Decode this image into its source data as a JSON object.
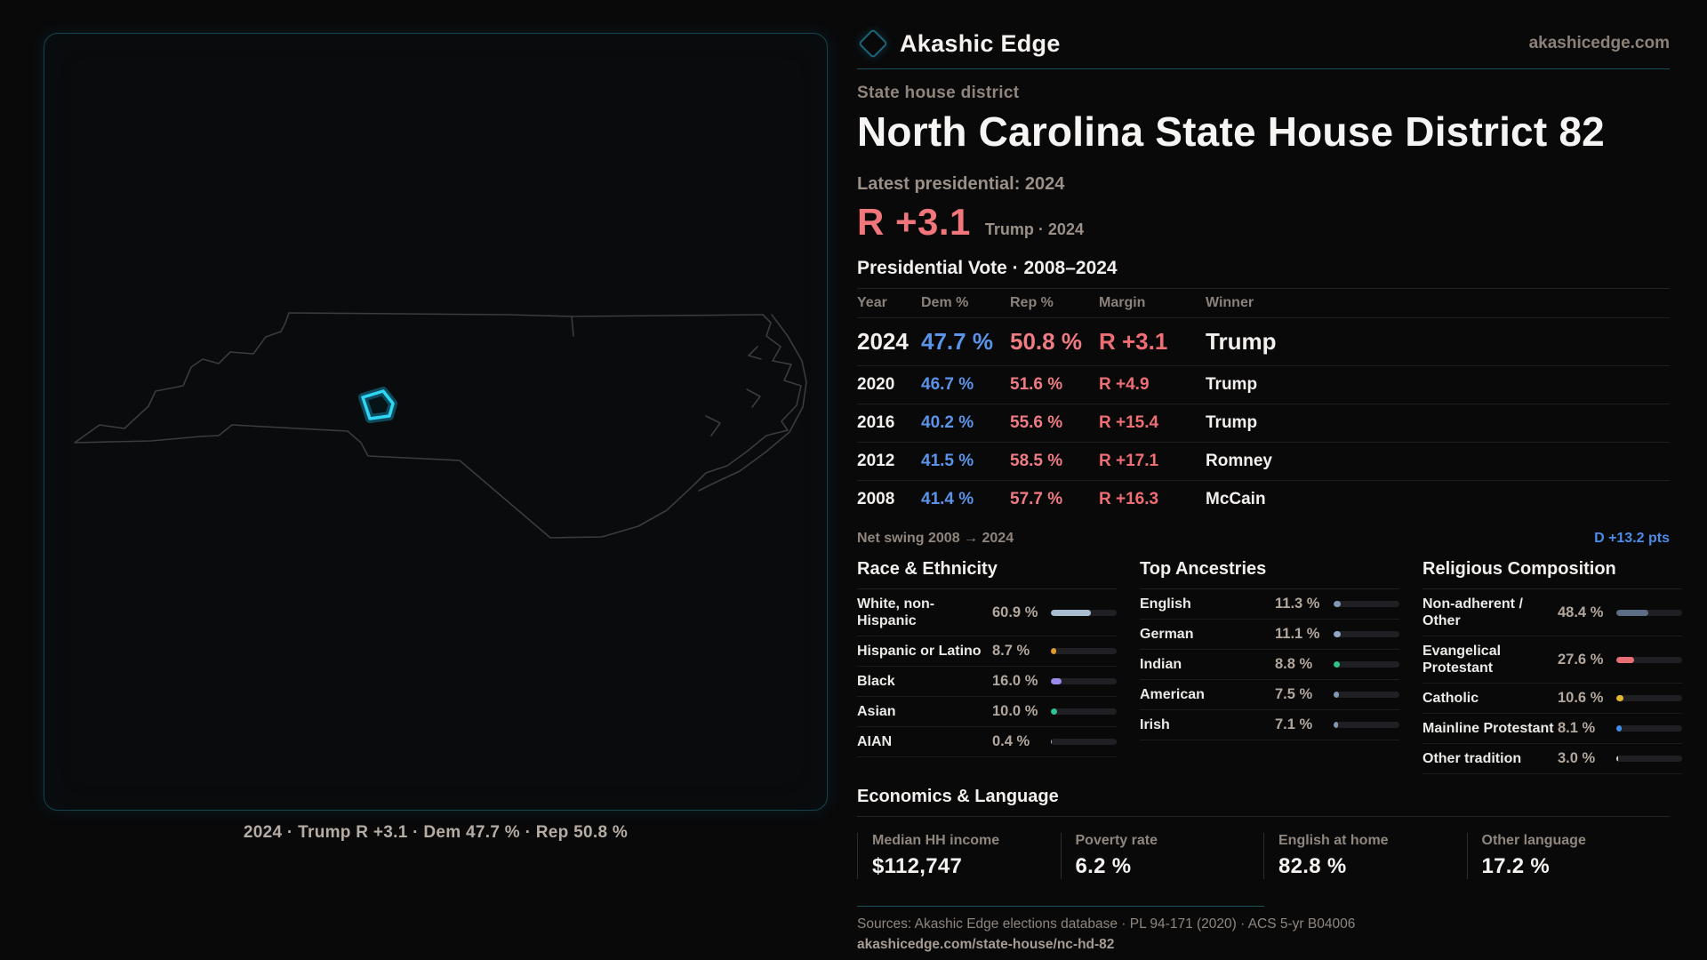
{
  "brand": {
    "name": "Akashic Edge",
    "domain": "akashicedge.com",
    "logo_icon": "diamond-outline-icon"
  },
  "header": {
    "kicker": "State house district",
    "title": "North Carolina State House District 82",
    "latest_label": "Latest presidential: 2024",
    "headline_margin": "R +3.1",
    "headline_context": "Trump · 2024"
  },
  "vote_table": {
    "title": "Presidential Vote · 2008–2024",
    "columns": [
      "Year",
      "Dem %",
      "Rep %",
      "Margin",
      "Winner"
    ],
    "rows": [
      {
        "year": "2024",
        "dem": "47.7 %",
        "rep": "50.8 %",
        "margin": "R +3.1",
        "winner": "Trump"
      },
      {
        "year": "2020",
        "dem": "46.7 %",
        "rep": "51.6 %",
        "margin": "R +4.9",
        "winner": "Trump"
      },
      {
        "year": "2016",
        "dem": "40.2 %",
        "rep": "55.6 %",
        "margin": "R +15.4",
        "winner": "Trump"
      },
      {
        "year": "2012",
        "dem": "41.5 %",
        "rep": "58.5 %",
        "margin": "R +17.1",
        "winner": "Romney"
      },
      {
        "year": "2008",
        "dem": "41.4 %",
        "rep": "57.7 %",
        "margin": "R +16.3",
        "winner": "McCain"
      }
    ],
    "net_swing_label": "Net swing 2008 → 2024",
    "net_swing_value": "D +13.2 pts"
  },
  "chart_data": [
    {
      "type": "bar",
      "title": "Race & Ethnicity",
      "categories": [
        "White, non-Hispanic",
        "Hispanic or Latino",
        "Black",
        "Asian",
        "AIAN"
      ],
      "values": [
        60.9,
        8.7,
        16.0,
        10.0,
        0.4
      ],
      "value_labels": [
        "60.9 %",
        "8.7 %",
        "16.0 %",
        "10.0 %",
        "0.4 %"
      ],
      "colors": [
        "#a9bdd1",
        "#e09b2d",
        "#9b8cec",
        "#2ec491",
        "#a9bdd1"
      ],
      "xlim": [
        0,
        100
      ]
    },
    {
      "type": "bar",
      "title": "Top Ancestries",
      "categories": [
        "English",
        "German",
        "Indian",
        "American",
        "Irish"
      ],
      "values": [
        11.3,
        11.1,
        8.8,
        7.5,
        7.1
      ],
      "value_labels": [
        "11.3 %",
        "11.1 %",
        "8.8 %",
        "7.5 %",
        "7.1 %"
      ],
      "colors": [
        "#7f99b5",
        "#8fa9c4",
        "#2ec487",
        "#7f99b5",
        "#8099b3"
      ],
      "xlim": [
        0,
        100
      ]
    },
    {
      "type": "bar",
      "title": "Religious Composition",
      "categories": [
        "Non-adherent / Other",
        "Evangelical Protestant",
        "Catholic",
        "Mainline Protestant",
        "Other tradition"
      ],
      "values": [
        48.4,
        27.6,
        10.6,
        8.1,
        3.0
      ],
      "value_labels": [
        "48.4 %",
        "27.6 %",
        "10.6 %",
        "8.1 %",
        "3.0 %"
      ],
      "colors": [
        "#5d6c85",
        "#e76f74",
        "#e3b82e",
        "#3f8de8",
        "#cfcfd2"
      ],
      "xlim": [
        0,
        100
      ]
    }
  ],
  "economics": {
    "title": "Economics & Language",
    "stats": [
      {
        "label": "Median HH income",
        "value": "$112,747"
      },
      {
        "label": "Poverty rate",
        "value": "6.2 %"
      },
      {
        "label": "English at home",
        "value": "82.8 %"
      },
      {
        "label": "Other language",
        "value": "17.2 %"
      }
    ]
  },
  "footer": {
    "sources": "Sources: Akashic Edge elections database · PL 94-171 (2020) · ACS 5-yr B04006",
    "link": "akashicedge.com/state-house/nc-hd-82"
  },
  "map": {
    "caption": "2024 · Trump R +3.1 · Dem 47.7 % · Rep 50.8 %",
    "highlight_color": "#2fd6f4"
  },
  "colors": {
    "background": "#09090a",
    "accent_teal": "#1d4f5c",
    "dem_blue": "#5b93e8",
    "rep_red": "#ef7c82",
    "margin_red": "#ee6e74",
    "swing_blue": "#4a8de8",
    "district_cyan": "#2fd6f4",
    "state_outline": "#3b3b40"
  }
}
